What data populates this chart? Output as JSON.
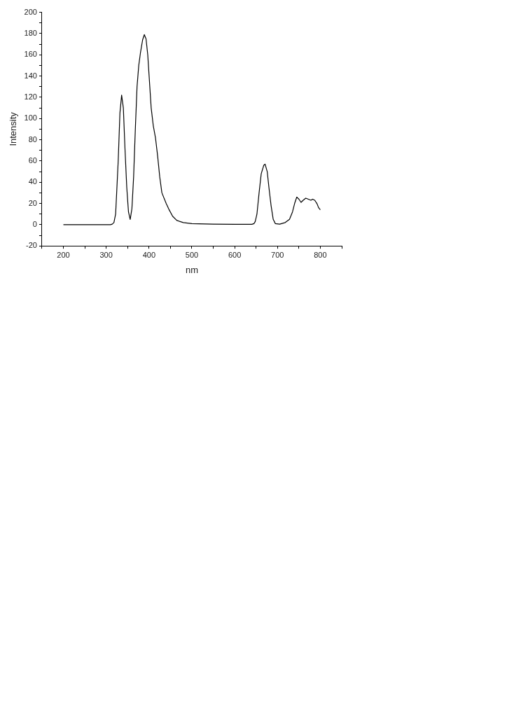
{
  "chart_data": {
    "type": "line",
    "xlabel": "nm",
    "ylabel": "Intensity",
    "series": [
      {
        "color": "#000000",
        "x": [
          200,
          250,
          300,
          310,
          314,
          318,
          322,
          328,
          332,
          336,
          340,
          344,
          348,
          352,
          356,
          360,
          364,
          368,
          372,
          376,
          380,
          385,
          389,
          393,
          397,
          401,
          405,
          410,
          415,
          420,
          425,
          430,
          440,
          447,
          455,
          465,
          480,
          500,
          550,
          600,
          640,
          645,
          648,
          652,
          657,
          662,
          668,
          671,
          676,
          680,
          685,
          690,
          695,
          705,
          718,
          728,
          735,
          740,
          745,
          750,
          755,
          760,
          766,
          772,
          778,
          782,
          787,
          792,
          796,
          800
        ],
        "values": [
          0,
          0,
          0,
          0,
          0.5,
          2,
          10,
          60,
          105,
          122,
          110,
          70,
          35,
          12,
          5,
          15,
          45,
          90,
          130,
          150,
          162,
          174,
          179,
          175,
          160,
          135,
          110,
          93,
          82,
          65,
          45,
          30,
          20,
          14,
          8,
          4,
          2,
          1,
          0.5,
          0.3,
          0.3,
          1,
          3,
          10,
          30,
          48,
          56,
          57,
          50,
          35,
          18,
          5,
          1,
          0.5,
          2,
          5,
          12,
          20,
          26,
          24,
          21,
          23,
          25,
          24,
          23,
          24,
          23,
          20,
          16,
          14
        ]
      }
    ],
    "xlim": [
      150,
      850
    ],
    "ylim": [
      -20,
      200
    ],
    "xticks": [
      {
        "value": 150,
        "label": null
      },
      200,
      {
        "value": 250,
        "label": null
      },
      300,
      {
        "value": 350,
        "label": null
      },
      400,
      {
        "value": 450,
        "label": null
      },
      500,
      {
        "value": 550,
        "label": null
      },
      600,
      {
        "value": 650,
        "label": null
      },
      700,
      {
        "value": 750,
        "label": null
      },
      800,
      {
        "value": 850,
        "label": null
      }
    ],
    "yticks": [
      -20,
      {
        "value": -10,
        "label": null
      },
      0,
      {
        "value": 10,
        "label": null
      },
      20,
      {
        "value": 30,
        "label": null
      },
      40,
      {
        "value": 50,
        "label": null
      },
      60,
      {
        "value": 70,
        "label": null
      },
      80,
      {
        "value": 90,
        "label": null
      },
      100,
      {
        "value": 110,
        "label": null
      },
      120,
      {
        "value": 130,
        "label": null
      },
      140,
      {
        "value": 150,
        "label": null
      },
      160,
      {
        "value": 170,
        "label": null
      },
      180,
      {
        "value": 190,
        "label": null
      },
      200
    ],
    "grid": false,
    "legend": false,
    "marker": "none",
    "line_style": "solid"
  }
}
